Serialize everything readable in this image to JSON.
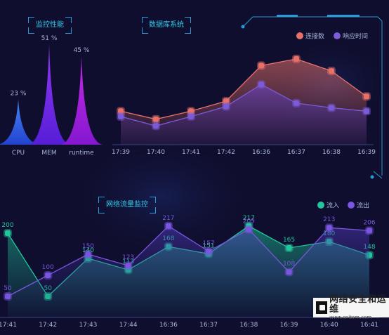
{
  "panels": {
    "perf_title": "监控性能",
    "db_title": "数据库系统",
    "net_title": "网络流量监控"
  },
  "watermark": {
    "text": "网络安全和运维",
    "url": "www.cnitom.com"
  },
  "colors": {
    "background": "#0f0e2e",
    "title": "#36c8e8",
    "axis_text": "#a9b4d8",
    "connections": "#e8706a",
    "response": "#7b5bd8",
    "inflow": "#1fc79a",
    "outflow": "#7a55e0"
  },
  "chart_data": [
    {
      "type": "bar",
      "title": "监控性能",
      "categories": [
        "CPU",
        "MEM",
        "runtime"
      ],
      "values": [
        23,
        51,
        45
      ],
      "value_labels": [
        "23 %",
        "51 %",
        "45 %"
      ],
      "bar_colors": [
        "#2b6bf0",
        "#7a26f0",
        "#b21ee8"
      ],
      "ylim": [
        0,
        60
      ]
    },
    {
      "type": "area",
      "title": "数据库系统",
      "categories": [
        "17:39",
        "17:40",
        "17:41",
        "17:42",
        "16:36",
        "16:37",
        "16:38",
        "16:39"
      ],
      "ylim": [
        0,
        130
      ],
      "legend_position": "top-right",
      "series": [
        {
          "name": "连接数",
          "values": [
            50,
            38,
            50,
            65,
            118,
            128,
            110,
            72
          ]
        },
        {
          "name": "响应时间",
          "values": [
            42,
            28,
            42,
            57,
            90,
            62,
            55,
            50
          ]
        }
      ]
    },
    {
      "type": "area",
      "title": "网络流量监控",
      "categories": [
        "17:41",
        "17:42",
        "17:43",
        "17:44",
        "16:36",
        "16:37",
        "16:38",
        "16:39",
        "16:40",
        "16:41"
      ],
      "ylim": [
        0,
        250
      ],
      "legend_position": "top-right",
      "series": [
        {
          "name": "流入",
          "values": [
            200,
            50,
            140,
            113,
            168,
            151,
            217,
            165,
            180,
            148
          ]
        },
        {
          "name": "流出",
          "values": [
            50,
            100,
            150,
            123,
            217,
            157,
            209,
            108,
            213,
            206
          ]
        }
      ]
    }
  ]
}
